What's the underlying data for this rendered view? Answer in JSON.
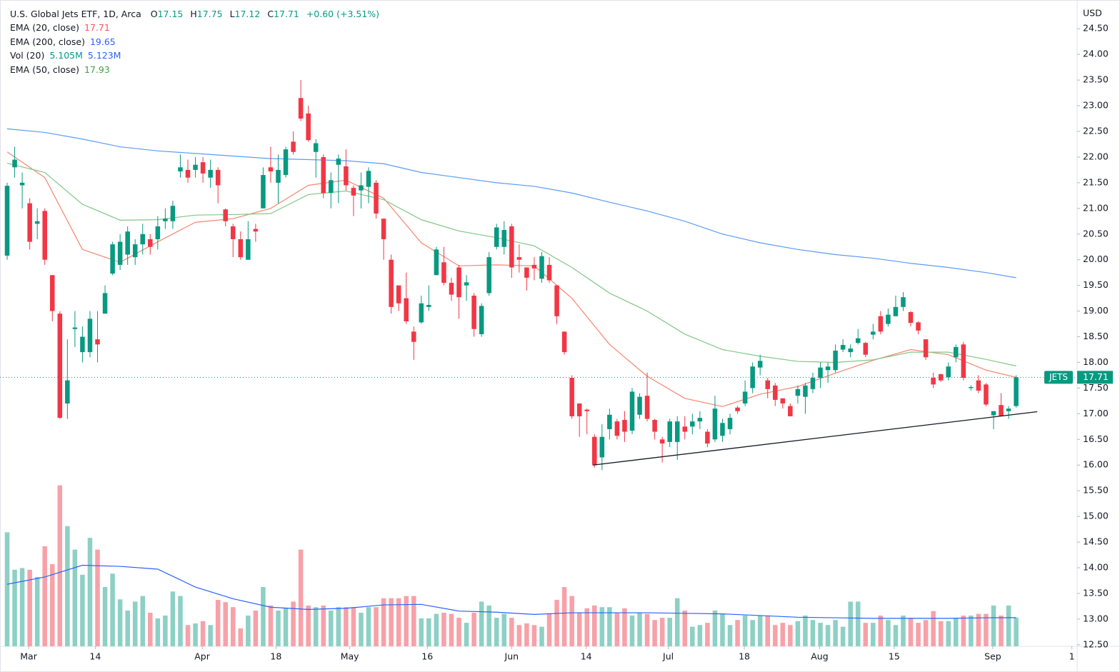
{
  "chart_data": {
    "type": "candlestick",
    "title": "U.S. Global Jets ETF, 1D, Arca",
    "ohlc_letters": [
      "O",
      "H",
      "L",
      "C"
    ],
    "change": "+0.60 (+3.51%)",
    "currency": "USD",
    "symbol": "JETS",
    "up_color": "#089981",
    "down_color": "#f23645",
    "up_volume_color": "#8dd0c5",
    "down_volume_color": "#f7a1a8",
    "grid": false,
    "xlim": [
      -0.95,
      142.1
    ],
    "ylim": [
      12.47,
      24.99
    ],
    "y2lim": [
      0,
      115
    ],
    "yticks": [
      {
        "value": 12.5,
        "label": "12.50"
      },
      {
        "value": 13,
        "label": "13.00"
      },
      {
        "value": 13.5,
        "label": "13.50"
      },
      {
        "value": 14,
        "label": "14.00"
      },
      {
        "value": 14.5,
        "label": "14.50"
      },
      {
        "value": 15,
        "label": "15.00"
      },
      {
        "value": 15.5,
        "label": "15.50"
      },
      {
        "value": 16,
        "label": "16.00"
      },
      {
        "value": 16.5,
        "label": "16.50"
      },
      {
        "value": 17,
        "label": "17.00"
      },
      {
        "value": 17.5,
        "label": "17.50"
      },
      {
        "value": 18,
        "label": "18.00"
      },
      {
        "value": 18.5,
        "label": "18.50"
      },
      {
        "value": 19,
        "label": "19.00"
      },
      {
        "value": 19.5,
        "label": "19.50"
      },
      {
        "value": 20,
        "label": "20.00"
      },
      {
        "value": 20.5,
        "label": "20.50"
      },
      {
        "value": 21,
        "label": "21.00"
      },
      {
        "value": 21.5,
        "label": "21.50"
      },
      {
        "value": 22,
        "label": "22.00"
      },
      {
        "value": 22.5,
        "label": "22.50"
      },
      {
        "value": 23,
        "label": "23.00"
      },
      {
        "value": 23.5,
        "label": "23.50"
      },
      {
        "value": 24,
        "label": "24.00"
      },
      {
        "value": 24.5,
        "label": "24.50"
      }
    ],
    "xticks": [
      {
        "value": 2.85,
        "label": "Mar"
      },
      {
        "value": 11.7,
        "label": "14"
      },
      {
        "value": 25.9,
        "label": "Apr"
      },
      {
        "value": 35.7,
        "label": "18"
      },
      {
        "value": 45.5,
        "label": "May"
      },
      {
        "value": 55.8,
        "label": "16"
      },
      {
        "value": 67,
        "label": "Jun"
      },
      {
        "value": 76.9,
        "label": "14"
      },
      {
        "value": 87.8,
        "label": "Jul"
      },
      {
        "value": 97.9,
        "label": "18"
      },
      {
        "value": 107.9,
        "label": "Aug"
      },
      {
        "value": 117.8,
        "label": "15"
      },
      {
        "value": 130.9,
        "label": "Sep"
      },
      {
        "value": 141.4,
        "label": "1"
      }
    ],
    "ohlc": [
      [
        20.08,
        21.5,
        20.0,
        21.44
      ],
      [
        21.8,
        22.2,
        21.6,
        21.95
      ],
      [
        21.45,
        21.7,
        21.0,
        21.5
      ],
      [
        21.1,
        21.2,
        20.2,
        20.35
      ],
      [
        20.7,
        21.0,
        20.4,
        20.75
      ],
      [
        20.95,
        21.0,
        19.9,
        20.0
      ],
      [
        19.7,
        19.7,
        18.8,
        19.0
      ],
      [
        18.95,
        19.0,
        16.9,
        16.92
      ],
      [
        17.2,
        18.45,
        16.9,
        17.65
      ],
      [
        18.65,
        19.0,
        18.3,
        18.68
      ],
      [
        18.2,
        18.7,
        18.0,
        18.5
      ],
      [
        18.2,
        19.0,
        18.1,
        18.85
      ],
      [
        18.45,
        19.0,
        18.0,
        18.35
      ],
      [
        18.95,
        19.5,
        18.95,
        19.35
      ],
      [
        19.73,
        20.35,
        19.7,
        20.3
      ],
      [
        19.9,
        20.5,
        19.8,
        20.35
      ],
      [
        20.1,
        20.65,
        19.9,
        20.55
      ],
      [
        20.05,
        20.4,
        19.9,
        20.3
      ],
      [
        20.3,
        20.7,
        20.1,
        20.5
      ],
      [
        20.4,
        20.5,
        20.1,
        20.25
      ],
      [
        20.4,
        20.85,
        20.2,
        20.65
      ],
      [
        20.75,
        21.0,
        20.6,
        20.8
      ],
      [
        20.75,
        21.15,
        20.6,
        21.05
      ],
      [
        21.72,
        22.05,
        21.6,
        21.8
      ],
      [
        21.75,
        21.95,
        21.5,
        21.6
      ],
      [
        21.75,
        22.0,
        21.6,
        21.85
      ],
      [
        21.9,
        22.0,
        21.5,
        21.68
      ],
      [
        21.6,
        21.95,
        21.4,
        21.75
      ],
      [
        21.75,
        21.8,
        21.1,
        21.45
      ],
      [
        20.98,
        21.0,
        20.65,
        20.75
      ],
      [
        20.65,
        20.7,
        20.05,
        20.4
      ],
      [
        20.4,
        20.55,
        20.0,
        20.05
      ],
      [
        20.0,
        20.75,
        20.0,
        20.4
      ],
      [
        20.6,
        20.7,
        20.35,
        20.55
      ],
      [
        21.0,
        21.8,
        21.0,
        21.65
      ],
      [
        21.8,
        22.2,
        21.5,
        21.72
      ],
      [
        21.5,
        22.05,
        21.1,
        21.75
      ],
      [
        21.65,
        22.2,
        21.6,
        22.15
      ],
      [
        22.3,
        22.5,
        22.05,
        22.1
      ],
      [
        23.15,
        23.5,
        22.7,
        22.75
      ],
      [
        22.85,
        23.0,
        22.3,
        22.33
      ],
      [
        22.1,
        22.35,
        21.6,
        22.27
      ],
      [
        22.0,
        22.05,
        21.2,
        21.3
      ],
      [
        21.3,
        21.7,
        21.0,
        21.55
      ],
      [
        21.85,
        22.05,
        21.1,
        21.97
      ],
      [
        21.82,
        22.15,
        21.35,
        21.45
      ],
      [
        21.4,
        21.45,
        20.85,
        21.25
      ],
      [
        21.35,
        21.7,
        21.0,
        21.45
      ],
      [
        21.42,
        21.8,
        21.1,
        21.73
      ],
      [
        21.5,
        21.55,
        20.8,
        20.9
      ],
      [
        20.8,
        20.8,
        20.0,
        20.4
      ],
      [
        20.0,
        20.1,
        18.95,
        19.08
      ],
      [
        19.5,
        19.5,
        19.0,
        19.15
      ],
      [
        19.25,
        19.75,
        18.75,
        18.8
      ],
      [
        18.6,
        18.7,
        18.05,
        18.4
      ],
      [
        18.78,
        19.3,
        18.75,
        19.15
      ],
      [
        19.08,
        19.5,
        19.0,
        19.12
      ],
      [
        19.7,
        20.25,
        19.7,
        20.2
      ],
      [
        19.95,
        20.25,
        19.5,
        19.55
      ],
      [
        19.55,
        19.65,
        19.2,
        19.32
      ],
      [
        19.85,
        19.9,
        18.85,
        19.27
      ],
      [
        19.5,
        19.7,
        19.2,
        19.56
      ],
      [
        19.3,
        19.35,
        18.5,
        18.65
      ],
      [
        18.55,
        19.15,
        18.5,
        19.1
      ],
      [
        19.35,
        20.15,
        19.3,
        20.05
      ],
      [
        20.25,
        20.7,
        20.2,
        20.63
      ],
      [
        20.25,
        20.75,
        20.1,
        20.58
      ],
      [
        20.65,
        20.7,
        19.65,
        19.85
      ],
      [
        20.05,
        20.3,
        19.75,
        20.0
      ],
      [
        19.85,
        19.85,
        19.4,
        19.65
      ],
      [
        19.9,
        20.05,
        19.6,
        19.83
      ],
      [
        19.63,
        20.15,
        19.55,
        20.07
      ],
      [
        19.9,
        20.05,
        19.55,
        19.6
      ],
      [
        19.5,
        19.5,
        18.75,
        18.9
      ],
      [
        18.6,
        18.6,
        18.15,
        18.2
      ],
      [
        17.7,
        17.75,
        16.9,
        16.95
      ],
      [
        17.2,
        17.2,
        16.55,
        16.95
      ],
      [
        17.08,
        17.1,
        16.6,
        17.05
      ],
      [
        16.55,
        16.6,
        15.95,
        16.0
      ],
      [
        16.15,
        16.8,
        15.9,
        16.55
      ],
      [
        16.7,
        17.1,
        16.5,
        16.98
      ],
      [
        16.85,
        16.9,
        16.5,
        16.57
      ],
      [
        16.88,
        17.05,
        16.45,
        16.65
      ],
      [
        16.67,
        17.5,
        16.6,
        17.43
      ],
      [
        16.98,
        17.4,
        16.9,
        17.33
      ],
      [
        17.35,
        17.8,
        16.85,
        16.9
      ],
      [
        16.88,
        16.9,
        16.5,
        16.65
      ],
      [
        16.5,
        16.55,
        16.05,
        16.42
      ],
      [
        16.45,
        16.9,
        16.35,
        16.85
      ],
      [
        16.45,
        16.95,
        16.1,
        16.85
      ],
      [
        16.75,
        16.95,
        16.5,
        16.65
      ],
      [
        16.75,
        17.0,
        16.6,
        16.85
      ],
      [
        16.85,
        17.05,
        16.7,
        16.92
      ],
      [
        16.65,
        16.7,
        16.35,
        16.42
      ],
      [
        16.5,
        17.35,
        16.45,
        17.1
      ],
      [
        16.57,
        16.9,
        16.45,
        16.82
      ],
      [
        16.7,
        17.0,
        16.6,
        16.92
      ],
      [
        17.12,
        17.15,
        17.0,
        17.05
      ],
      [
        17.2,
        17.65,
        17.15,
        17.43
      ],
      [
        17.5,
        18.0,
        17.4,
        17.92
      ],
      [
        17.9,
        18.15,
        17.75,
        18.03
      ],
      [
        17.65,
        17.7,
        17.3,
        17.48
      ],
      [
        17.55,
        17.6,
        17.15,
        17.27
      ],
      [
        17.3,
        17.3,
        17.1,
        17.2
      ],
      [
        17.15,
        17.2,
        16.95,
        16.95
      ],
      [
        17.35,
        17.55,
        17.2,
        17.48
      ],
      [
        17.33,
        17.6,
        17.0,
        17.55
      ],
      [
        17.48,
        17.8,
        17.4,
        17.7
      ],
      [
        17.7,
        18.0,
        17.5,
        17.9
      ],
      [
        17.85,
        18.0,
        17.6,
        17.92
      ],
      [
        17.85,
        18.35,
        17.8,
        18.23
      ],
      [
        18.25,
        18.45,
        18.2,
        18.34
      ],
      [
        18.2,
        18.35,
        18.1,
        18.27
      ],
      [
        18.38,
        18.65,
        18.35,
        18.47
      ],
      [
        18.38,
        18.4,
        18.1,
        18.15
      ],
      [
        18.54,
        18.75,
        18.45,
        18.6
      ],
      [
        18.9,
        19.0,
        18.55,
        18.6
      ],
      [
        18.75,
        19.05,
        18.7,
        18.93
      ],
      [
        18.9,
        19.3,
        18.9,
        19.08
      ],
      [
        19.08,
        19.37,
        19.0,
        19.27
      ],
      [
        18.98,
        19.0,
        18.7,
        18.77
      ],
      [
        18.78,
        18.8,
        18.55,
        18.62
      ],
      [
        18.45,
        18.45,
        18.05,
        18.1
      ],
      [
        17.7,
        17.8,
        17.5,
        17.57
      ],
      [
        17.77,
        17.78,
        17.62,
        17.65
      ],
      [
        17.71,
        18.0,
        17.65,
        17.92
      ],
      [
        18.1,
        18.35,
        18.0,
        18.3
      ],
      [
        18.35,
        18.4,
        17.65,
        17.7
      ],
      [
        17.5,
        17.55,
        17.45,
        17.52
      ],
      [
        17.65,
        17.75,
        17.4,
        17.45
      ],
      [
        17.57,
        17.6,
        17.15,
        17.18
      ],
      [
        16.97,
        17.05,
        16.7,
        17.05
      ],
      [
        17.17,
        17.4,
        16.95,
        16.95
      ],
      [
        17.05,
        17.15,
        16.9,
        17.1
      ],
      [
        17.15,
        17.75,
        17.12,
        17.71
      ]
    ],
    "volume": [
      20.4,
      13.7,
      14,
      13.7,
      12.4,
      17.9,
      14.7,
      28.8,
      21.5,
      17.3,
      12.8,
      19.4,
      17.3,
      10.6,
      13,
      8.4,
      6.4,
      8,
      9,
      6,
      5,
      5.5,
      9.8,
      9,
      3.8,
      4.1,
      4.5,
      3.8,
      8.3,
      7.9,
      7,
      3.2,
      5.5,
      6.4,
      10.6,
      7.3,
      6.4,
      6.8,
      8,
      17.3,
      7.3,
      7,
      7.3,
      6.4,
      7,
      7,
      7,
      6,
      7,
      7,
      8.6,
      8.6,
      8.6,
      9,
      9,
      5,
      5,
      5.8,
      6,
      5.8,
      5.1,
      4.2,
      6,
      8,
      7.3,
      5.1,
      5.8,
      5.1,
      3.8,
      4.1,
      3.8,
      3.5,
      5.8,
      8.3,
      10.6,
      9,
      6,
      6.8,
      7.3,
      7,
      7,
      6,
      6.8,
      5.5,
      6,
      5.8,
      4.7,
      5.1,
      5.1,
      8.6,
      6.4,
      3.5,
      3.8,
      4.2,
      6.4,
      5.8,
      3.8,
      4.7,
      5.5,
      4.7,
      5.5,
      5.5,
      3.8,
      4.2,
      3.8,
      4.5,
      5.5,
      4.7,
      4.2,
      3.8,
      4.7,
      3.5,
      8,
      8,
      4.2,
      4.2,
      5.5,
      4.7,
      3.8,
      5.5,
      5.1,
      4.2,
      4.7,
      6.3,
      4.5,
      4.5,
      5.1,
      5.5,
      5.5,
      5.8,
      5.8,
      7.3,
      5.5,
      7.3,
      5.105
    ],
    "volume_label": "5.105M",
    "line_x": [
      0,
      5,
      10,
      15,
      20,
      25,
      30,
      35,
      40,
      45,
      50,
      55,
      60,
      65,
      70,
      75,
      80,
      85,
      90,
      95,
      100,
      105,
      110,
      115,
      120,
      125,
      130,
      134
    ],
    "series": [
      {
        "name": "EMA (20, close)",
        "color": "#f7856f",
        "values": [
          22.1,
          21.6,
          20.2,
          19.95,
          20.35,
          20.73,
          20.8,
          21.0,
          21.45,
          21.55,
          21.2,
          20.33,
          19.88,
          19.9,
          19.88,
          19.25,
          18.35,
          17.73,
          17.3,
          17.14,
          17.38,
          17.53,
          17.79,
          18.04,
          18.25,
          18.15,
          17.85,
          17.71
        ]
      },
      {
        "name": "EMA (200, close)",
        "color": "#5b9cf6",
        "values": [
          22.55,
          22.48,
          22.35,
          22.2,
          22.12,
          22.07,
          22.02,
          21.97,
          21.95,
          21.93,
          21.87,
          21.7,
          21.6,
          21.5,
          21.43,
          21.3,
          21.12,
          20.95,
          20.75,
          20.5,
          20.33,
          20.2,
          20.1,
          20.03,
          19.93,
          19.85,
          19.75,
          19.65
        ]
      },
      {
        "name": "Vol (20)",
        "color": "#2962ff",
        "axis": "y2",
        "last_label": "5.123M",
        "values": [
          11.1,
          12.4,
          14.5,
          14.3,
          13.8,
          10.6,
          8.5,
          7.0,
          6.6,
          6.8,
          7.4,
          7.5,
          6.3,
          6.1,
          5.7,
          6.0,
          6.0,
          6.0,
          5.9,
          5.8,
          5.5,
          5.2,
          5.1,
          5.0,
          5.0,
          5.0,
          5.1,
          5.123
        ]
      },
      {
        "name": "EMA (50, close)",
        "color": "#81c784",
        "values": [
          21.88,
          21.7,
          21.08,
          20.77,
          20.78,
          20.87,
          20.88,
          20.9,
          21.27,
          21.34,
          21.17,
          20.78,
          20.56,
          20.43,
          20.27,
          19.85,
          19.35,
          19.0,
          18.55,
          18.25,
          18.12,
          18.02,
          18.0,
          18.05,
          18.2,
          18.2,
          18.06,
          17.93
        ]
      }
    ],
    "trendline": {
      "x": [
        77.8,
        136.8
      ],
      "values": [
        16.0,
        17.04
      ],
      "color": "#131722"
    }
  }
}
